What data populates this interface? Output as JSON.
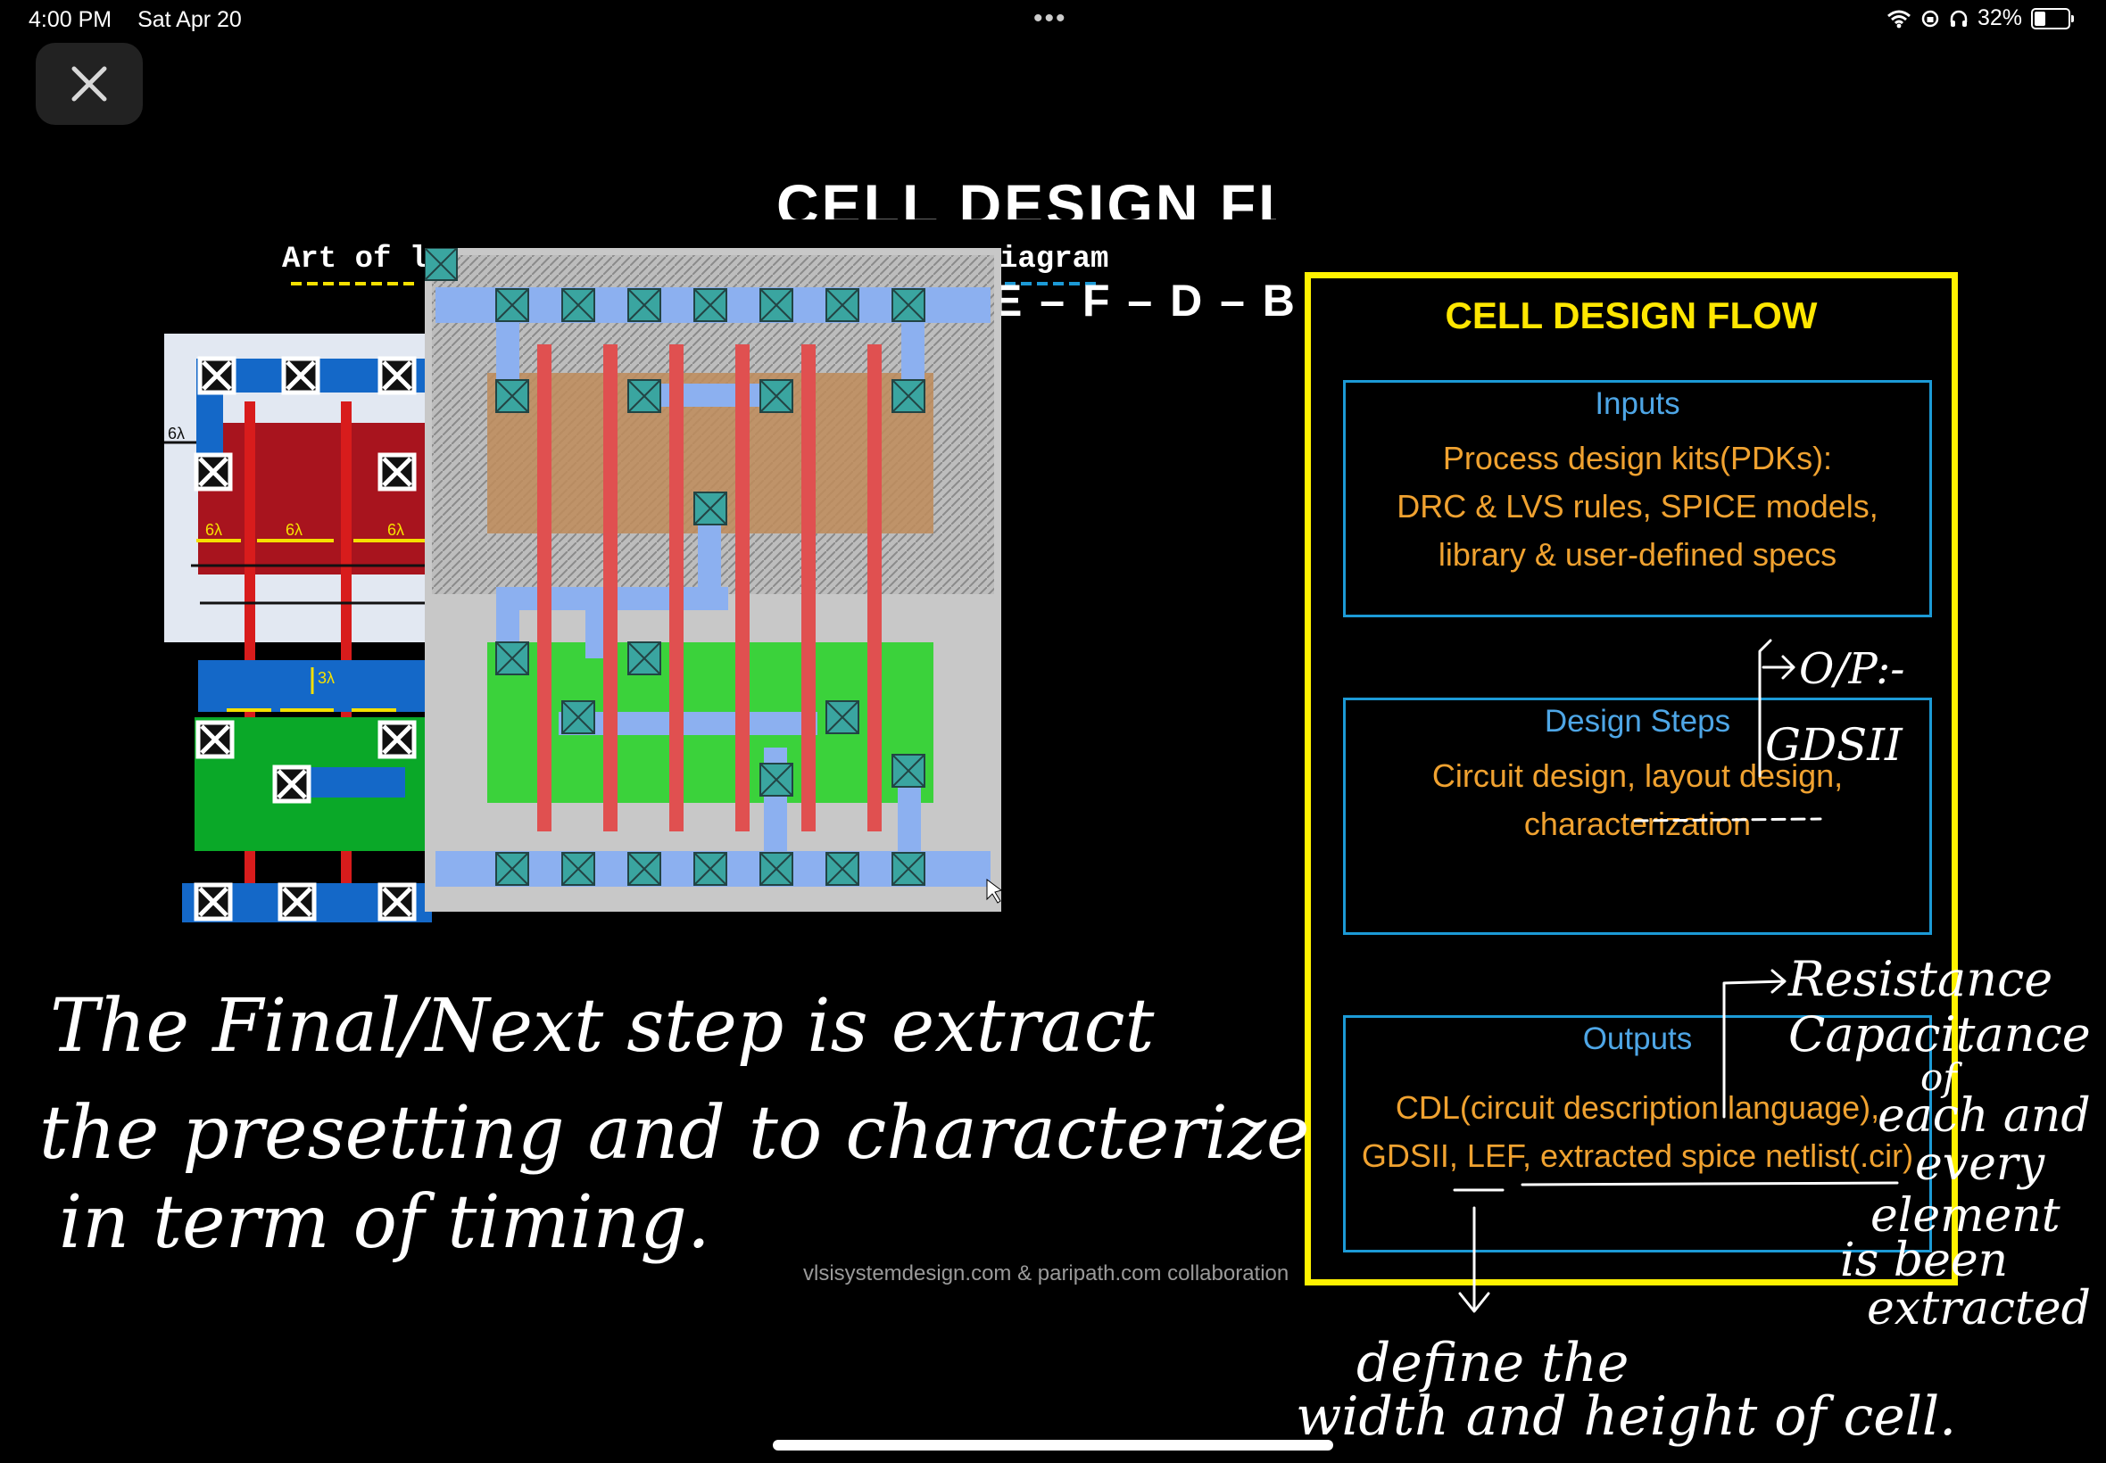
{
  "status_bar": {
    "time": "4:00 PM",
    "date": "Sat Apr 20",
    "battery": "32%",
    "battery_level": 0.32
  },
  "toolbar": {
    "close_icon": "close-icon"
  },
  "slide": {
    "title_partial": "CELL DESIGN FLOW",
    "art_left": "Art of l",
    "art_right": "iagram",
    "sequence_tail": "E – F – D – B",
    "layout_labels": [
      "6λ",
      "6λ",
      "6λ",
      "6λ",
      "3λ"
    ],
    "credit": "vlsisystemdesign.com & paripath.com collaboration"
  },
  "flow": {
    "title": "CELL DESIGN FLOW",
    "inputs": {
      "heading": "Inputs",
      "lines": [
        "Process design kits(PDKs):",
        "DRC & LVS rules, SPICE models,",
        "library & user-defined specs"
      ]
    },
    "steps": {
      "heading": "Design Steps",
      "lines": [
        "Circuit design, layout design,",
        "characterization"
      ]
    },
    "outputs": {
      "heading": "Outputs",
      "lines": [
        "CDL(circuit description language),",
        "GDSII, LEF, extracted spice netlist(.cir)"
      ]
    }
  },
  "annotations": {
    "note_line1": "The Final/Next step is extract",
    "note_line2": "the presetting and to characterize",
    "note_line3": "in term of timing.",
    "op_label": "O/P:-",
    "op_value": "GDSII",
    "rc_1": "Resistance",
    "rc_2": "Capacitance",
    "rc_3": "of",
    "rc_4": "each and",
    "rc_5": "every",
    "rc_6": "element",
    "rc_7": "is been",
    "rc_8": "extracted",
    "def_1": "define the",
    "def_2": "width and height of cell."
  }
}
